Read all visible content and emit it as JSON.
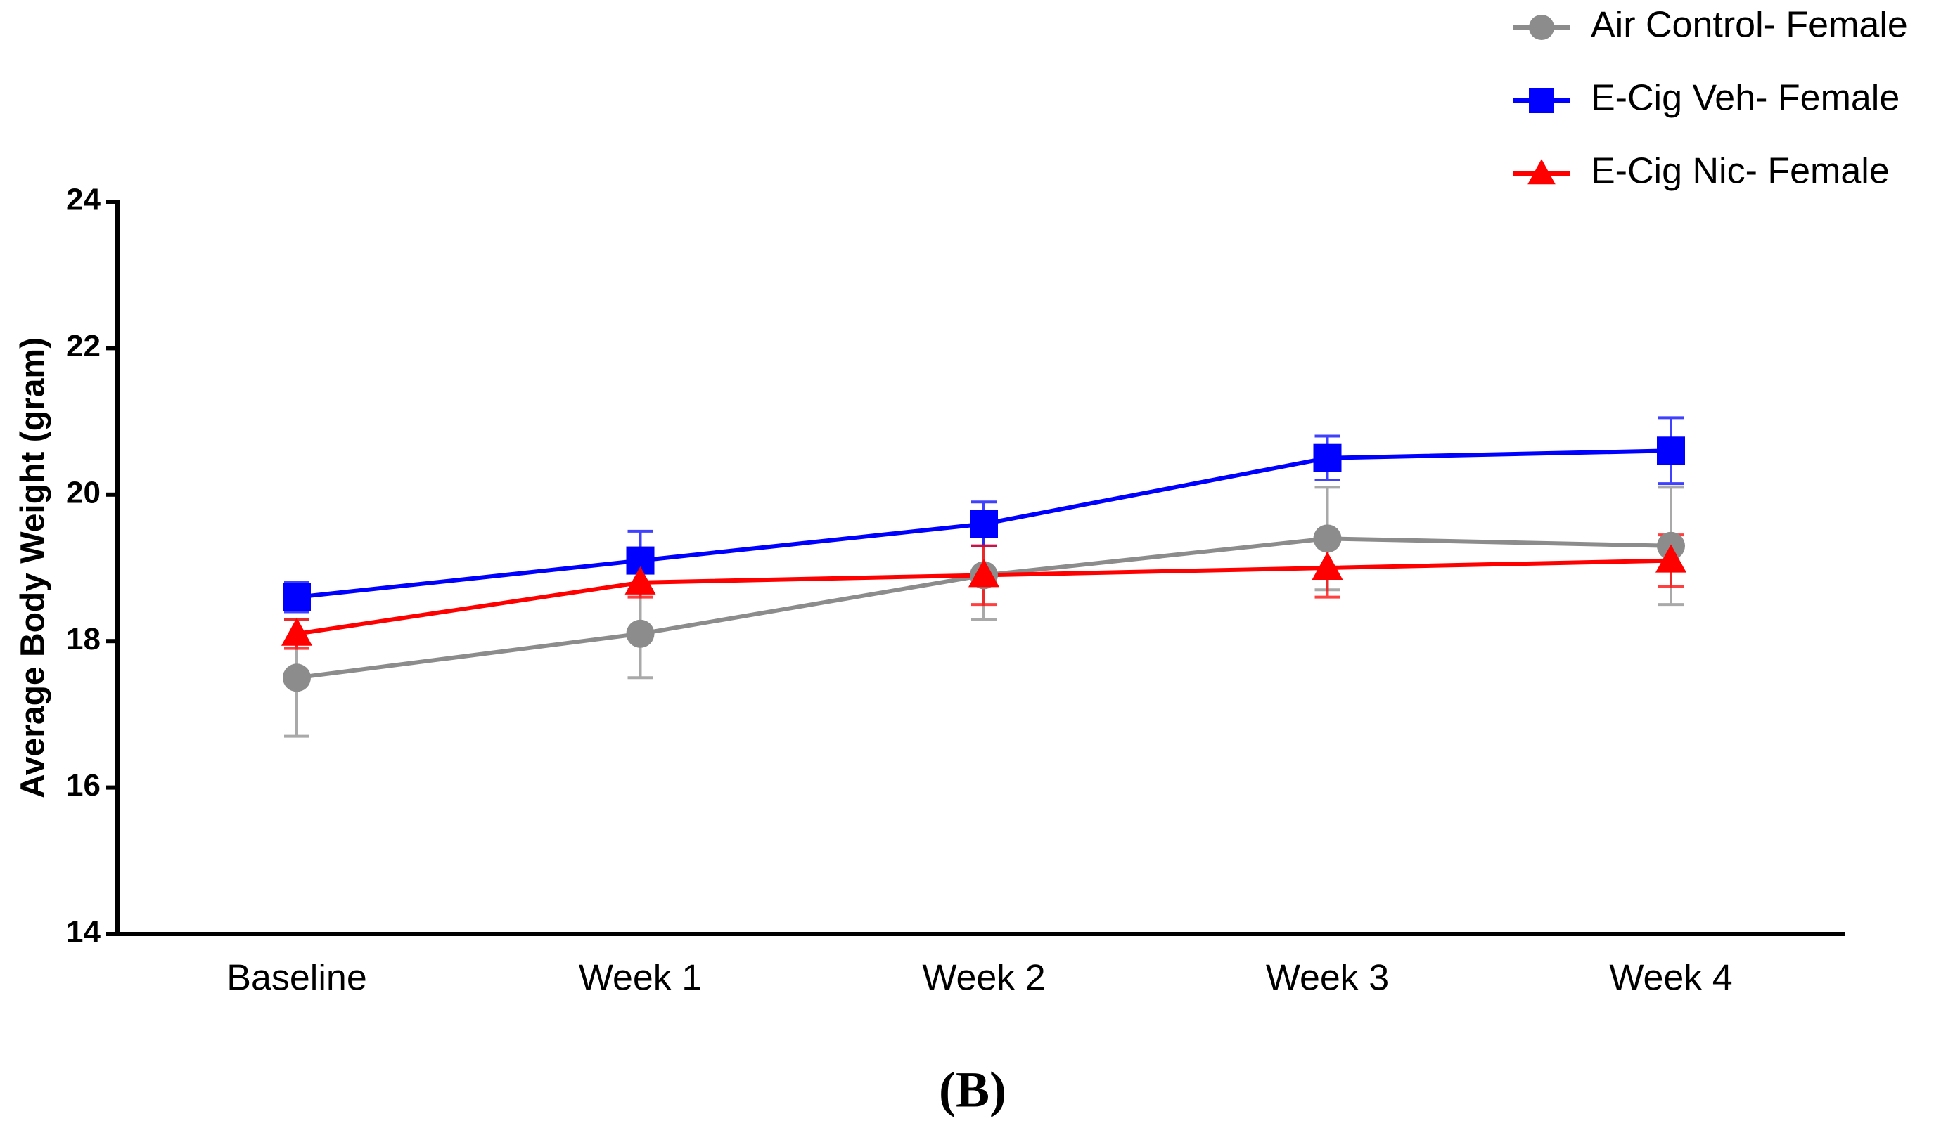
{
  "chart_data": {
    "type": "line",
    "ylabel": "Average Body Weight (gram)",
    "panel_label": "(B)",
    "categories": [
      "Baseline",
      "Week 1",
      "Week 2",
      "Week 3",
      "Week 4"
    ],
    "ylim": [
      14,
      24
    ],
    "yticks": [
      14,
      16,
      18,
      20,
      22,
      24
    ],
    "legend": "top-right",
    "series": [
      {
        "name": "Air Control- Female",
        "color": "#8c8c8c",
        "marker": "circle",
        "values": [
          17.5,
          18.1,
          18.9,
          19.4,
          19.3
        ],
        "errors": [
          0.8,
          0.6,
          0.6,
          0.7,
          0.8
        ]
      },
      {
        "name": "E-Cig Veh- Female",
        "color": "#0000ff",
        "marker": "square",
        "values": [
          18.6,
          19.1,
          19.6,
          20.5,
          20.6
        ],
        "errors": [
          0.2,
          0.4,
          0.3,
          0.3,
          0.45
        ]
      },
      {
        "name": "E-Cig Nic- Female",
        "color": "#ff0000",
        "marker": "triangle",
        "values": [
          18.1,
          18.8,
          18.9,
          19.0,
          19.1
        ],
        "errors": [
          0.2,
          0.2,
          0.4,
          0.4,
          0.35
        ]
      }
    ]
  }
}
